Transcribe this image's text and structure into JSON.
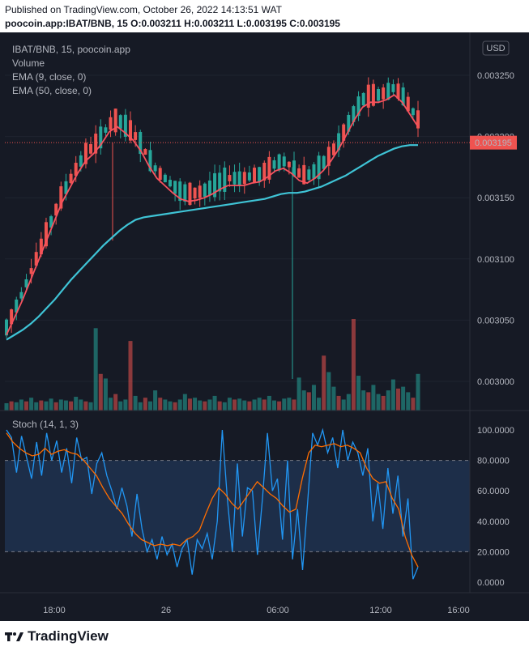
{
  "header": {
    "published": "Published on TradingView.com, October 26, 2022 14:13:51 WAT",
    "symbol_line": "poocoin.app:IBAT/BNB, 15 O:0.003211 H:0.003211 L:0.003195 C:0.003195"
  },
  "legend": {
    "symbol": "IBAT/BNB, 15, poocoin.app",
    "volume": "Volume",
    "ema9": "EMA (9, close, 0)",
    "ema50": "EMA (50, close, 0)",
    "stoch": "Stoch (14, 1, 3)"
  },
  "currency_button": "USD",
  "last_price_label": "0.003195",
  "branding": "TradingView",
  "colors": {
    "bg": "#161a25",
    "up": "#26a69a",
    "down": "#ef5350",
    "ema9": "#f7525f",
    "ema50": "#3fc4d6",
    "stoch_k": "#2196f3",
    "stoch_d": "#ff6d00",
    "band": "#1f3250"
  },
  "chart_data": [
    {
      "type": "candlestick",
      "title": "IBAT/BNB, 15, poocoin.app",
      "x_ticks": [
        "18:00",
        "26",
        "06:00",
        "12:00",
        "16:00"
      ],
      "y_ticks": [
        "0.003000",
        "0.003050",
        "0.003100",
        "0.003150",
        "0.003200",
        "0.003250"
      ],
      "last_price": 0.003195,
      "series": [
        {
          "name": "EMA (9, close, 0)",
          "values": [
            0.003038,
            0.003052,
            0.003066,
            0.003082,
            0.003098,
            0.003114,
            0.00313,
            0.003146,
            0.003158,
            0.00317,
            0.00318,
            0.003186,
            0.003194,
            0.003204,
            0.003208,
            0.003203,
            0.003197,
            0.003188,
            0.003176,
            0.003166,
            0.00316,
            0.003154,
            0.003149,
            0.003147,
            0.003148,
            0.00315,
            0.003153,
            0.003157,
            0.00316,
            0.00316,
            0.00316,
            0.003162,
            0.003163,
            0.003167,
            0.003172,
            0.003174,
            0.00317,
            0.003164,
            0.003162,
            0.003166,
            0.003172,
            0.00318,
            0.00319,
            0.003202,
            0.003214,
            0.003224,
            0.003228,
            0.003228,
            0.00323,
            0.003234,
            0.003228,
            0.003218,
            0.003208
          ]
        },
        {
          "name": "EMA (50, close, 0)",
          "values": [
            0.003034,
            0.003038,
            0.003042,
            0.003047,
            0.003053,
            0.00306,
            0.003067,
            0.003075,
            0.003083,
            0.00309,
            0.003097,
            0.003104,
            0.003111,
            0.003117,
            0.003123,
            0.003128,
            0.003132,
            0.003134,
            0.003135,
            0.003136,
            0.003137,
            0.003138,
            0.003139,
            0.00314,
            0.003141,
            0.003142,
            0.003143,
            0.003144,
            0.003145,
            0.003146,
            0.003147,
            0.003148,
            0.003149,
            0.003151,
            0.003153,
            0.003154,
            0.003154,
            0.003155,
            0.003157,
            0.003159,
            0.003162,
            0.003165,
            0.003168,
            0.003172,
            0.003176,
            0.00318,
            0.003184,
            0.003187,
            0.00319,
            0.003192,
            0.003193,
            0.003193
          ]
        }
      ],
      "volume_scale": "relative",
      "volume": [
        8,
        10,
        9,
        12,
        10,
        14,
        9,
        11,
        10,
        13,
        9,
        12,
        11,
        10,
        15,
        12,
        10,
        9,
        90,
        40,
        35,
        14,
        18,
        10,
        12,
        76,
        16,
        9,
        14,
        10,
        22,
        14,
        12,
        10,
        9,
        12,
        18,
        13,
        14,
        11,
        10,
        12,
        16,
        10,
        9,
        14,
        12,
        13,
        11,
        10,
        12,
        14,
        12,
        16,
        11,
        10,
        13,
        14,
        12,
        36,
        22,
        20,
        28,
        14,
        60,
        42,
        26,
        16,
        12,
        18,
        100,
        38,
        22,
        20,
        28,
        18,
        16,
        22,
        34,
        24,
        26,
        20,
        14,
        40
      ]
    },
    {
      "type": "line",
      "title": "Stoch (14, 1, 3)",
      "y_ticks": [
        "0.0000",
        "20.0000",
        "40.0000",
        "60.0000",
        "80.0000",
        "100.0000"
      ],
      "ylim": [
        -8,
        106
      ],
      "bands": [
        20,
        80
      ],
      "series": [
        {
          "name": "%K",
          "values": [
            100,
            95,
            72,
            96,
            82,
            68,
            92,
            70,
            98,
            80,
            93,
            72,
            88,
            65,
            95,
            80,
            82,
            58,
            78,
            85,
            70,
            60,
            48,
            62,
            50,
            30,
            58,
            35,
            20,
            28,
            15,
            30,
            18,
            25,
            10,
            22,
            28,
            5,
            28,
            22,
            32,
            15,
            40,
            100,
            55,
            20,
            78,
            30,
            62,
            60,
            18,
            55,
            98,
            60,
            68,
            28,
            80,
            15,
            48,
            8,
            52,
            98,
            90,
            100,
            85,
            95,
            75,
            100,
            80,
            92,
            85,
            70,
            88,
            40,
            65,
            35,
            75,
            45,
            70,
            30,
            55,
            2,
            10
          ]
        },
        {
          "name": "%D",
          "values": [
            98,
            92,
            88,
            85,
            83,
            84,
            88,
            84,
            86,
            87,
            85,
            84,
            80,
            75,
            70,
            62,
            55,
            50,
            45,
            38,
            32,
            28,
            26,
            24,
            25,
            24,
            25,
            24,
            28,
            30,
            34,
            45,
            55,
            62,
            58,
            52,
            48,
            54,
            60,
            66,
            62,
            58,
            55,
            50,
            46,
            48,
            68,
            85,
            90,
            89,
            90,
            91,
            89,
            90,
            88,
            85,
            75,
            68,
            65,
            66,
            55,
            48,
            30,
            18,
            10
          ]
        }
      ]
    }
  ]
}
